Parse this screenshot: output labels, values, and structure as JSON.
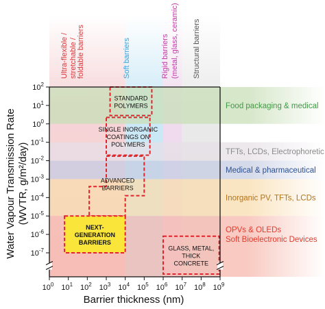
{
  "chart_data": {
    "type": "region-map",
    "xlabel": "Barrier thickness (nm)",
    "ylabel_line1": "Water Vapour Transmission Rate",
    "ylabel_line2": "(WVTR, g/m²/day)",
    "x_scale": "log10",
    "y_scale": "log10",
    "xlim_exp": [
      0,
      9
    ],
    "ylim_exp": [
      -7,
      2
    ],
    "x_ticks": [
      {
        "base": "10",
        "exp": "0"
      },
      {
        "base": "10",
        "exp": "1"
      },
      {
        "base": "10",
        "exp": "2"
      },
      {
        "base": "10",
        "exp": "3"
      },
      {
        "base": "10",
        "exp": "4"
      },
      {
        "base": "10",
        "exp": "5"
      },
      {
        "base": "10",
        "exp": "6"
      },
      {
        "base": "10",
        "exp": "7"
      },
      {
        "base": "10",
        "exp": "8"
      },
      {
        "base": "10",
        "exp": "9"
      }
    ],
    "y_ticks": [
      {
        "base": "10",
        "exp": "2"
      },
      {
        "base": "10",
        "exp": "1"
      },
      {
        "base": "10",
        "exp": "0"
      },
      {
        "base": "10",
        "exp": "-1"
      },
      {
        "base": "10",
        "exp": "-2"
      },
      {
        "base": "10",
        "exp": "-3"
      },
      {
        "base": "10",
        "exp": "-4"
      },
      {
        "base": "10",
        "exp": "-5"
      },
      {
        "base": "10",
        "exp": "-6"
      },
      {
        "base": "10",
        "exp": "-7"
      }
    ],
    "thickness_categories": [
      {
        "label": "Ultra-flexible / stretchable / foldable barriers",
        "lines": [
          "Ultra-flexible /",
          "stretchable /",
          "foldable barriers"
        ],
        "color": "#d9383c",
        "band_color": "#f4c9cc",
        "x_exp": [
          0,
          4
        ]
      },
      {
        "label": "Soft barriers",
        "lines": [
          "Soft barriers"
        ],
        "color": "#3f9fd6",
        "band_color": "#bfe3f4",
        "x_exp": [
          4,
          6
        ]
      },
      {
        "label": "Rigid barriers (metal, glass, ceramic)",
        "lines": [
          "Rigid barriers",
          "(metal, glass, ceramic)"
        ],
        "color": "#c23ca8",
        "band_color": "#ecd3ea",
        "x_exp": [
          6,
          7
        ]
      },
      {
        "label": "Structural barriers",
        "lines": [
          "Structural barriers"
        ],
        "color": "#555555",
        "band_color": "#e4e4e4",
        "x_exp": [
          7,
          9
        ]
      }
    ],
    "applications": [
      {
        "label": "Food packaging & medical",
        "lines": [
          "Food packaging & medical"
        ],
        "color": "#3f9a45",
        "band_color": "#c9dfb8",
        "y_exp": [
          0,
          2
        ]
      },
      {
        "label": "TFTs, LCDs, Electrophoretic",
        "lines": [
          "TFTs, LCDs, Electrophoretic"
        ],
        "color": "#8a8a8a",
        "band_color": "#e6e0e6",
        "y_exp": [
          -2,
          -1
        ]
      },
      {
        "label": "Medical & pharmaceutical",
        "lines": [
          "Medical & pharmaceutical"
        ],
        "color": "#2d4f8e",
        "band_color": "#c6cde3",
        "y_exp": [
          -3,
          -2
        ]
      },
      {
        "label": "Inorganic PV, TFTs, LCDs",
        "lines": [
          "Inorganic PV, TFTs, LCDs"
        ],
        "color": "#b3741a",
        "band_color": "#f9dcae",
        "y_exp": [
          -5,
          -3
        ]
      },
      {
        "label": "OPVs & OLEDs Soft Bioelectronic Devices",
        "lines": [
          "OPVs & OLEDs",
          "Soft Bioelectronic Devices"
        ],
        "color": "#e23a2c",
        "band_color": "#f6b9ae",
        "y_exp": [
          -7,
          -5
        ]
      }
    ],
    "materials": [
      {
        "label": "Standard polymers",
        "lines": [
          "Standard",
          "polymers"
        ],
        "x_exp": [
          3.2,
          5.4
        ],
        "y_exp": [
          0.45,
          2
        ],
        "fill": "none"
      },
      {
        "label": "Single inorganic coatings on polymers",
        "lines": [
          "Single Inorganic",
          "coatings on",
          "polymers"
        ],
        "x_exp": [
          3.0,
          5.3
        ],
        "y_exp": [
          -1.7,
          0.35
        ],
        "fill": "none"
      },
      {
        "label": "Advanced barriers",
        "lines": [
          "Advanced",
          "barriers"
        ],
        "x_exp": [
          2.1,
          5.0
        ],
        "y_exp": [
          -5.0,
          -1.75
        ],
        "fill": "none",
        "step_path": true
      },
      {
        "label": "Next-generation barriers",
        "lines": [
          "Next-",
          "generation",
          "barriers"
        ],
        "x_exp": [
          0.8,
          4.0
        ],
        "y_exp": [
          -7.0,
          -5.0
        ],
        "fill": "#fae53a"
      },
      {
        "label": "Glass, metal, thick concrete",
        "lines": [
          "Glass, Metal,",
          "Thick",
          "concrete"
        ],
        "x_exp": [
          6.0,
          8.95
        ],
        "y_exp": [
          -8.0,
          -6.1
        ],
        "fill": "none"
      }
    ]
  }
}
